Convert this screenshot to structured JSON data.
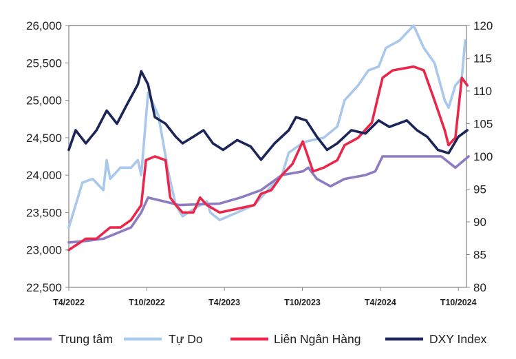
{
  "chart_data": {
    "type": "line",
    "title": "",
    "xlabel": "",
    "ylabel": "",
    "y2label": "",
    "xlim": [
      "2022-04-01",
      "2024-10-20"
    ],
    "ylim": [
      22500,
      26000
    ],
    "y2lim": [
      80,
      120
    ],
    "grid": false,
    "legend_position": "bottom",
    "y_ticks": [
      "22,500",
      "23,000",
      "23,500",
      "24,000",
      "24,500",
      "25,000",
      "25,500",
      "26,000"
    ],
    "y2_ticks": [
      "80",
      "85",
      "90",
      "95",
      "100",
      "105",
      "110",
      "115",
      "120"
    ],
    "x_ticks": [
      {
        "label": "T4/2022",
        "date": "2022-04-01"
      },
      {
        "label": "T10/2022",
        "date": "2022-10-01"
      },
      {
        "label": "T4/2023",
        "date": "2023-04-01"
      },
      {
        "label": "T10/2023",
        "date": "2023-10-01"
      },
      {
        "label": "T4/2024",
        "date": "2024-04-01"
      },
      {
        "label": "T10/2024",
        "date": "2024-10-01"
      }
    ],
    "series": [
      {
        "name": "Tự Do",
        "axis": "left",
        "color": "#a9c8ec",
        "points": [
          [
            "2022-04-01",
            23300
          ],
          [
            "2022-04-17",
            23600
          ],
          [
            "2022-05-03",
            23900
          ],
          [
            "2022-05-27",
            23950
          ],
          [
            "2022-06-21",
            23800
          ],
          [
            "2022-06-29",
            24200
          ],
          [
            "2022-07-07",
            23950
          ],
          [
            "2022-07-31",
            24100
          ],
          [
            "2022-08-25",
            24100
          ],
          [
            "2022-09-10",
            24200
          ],
          [
            "2022-09-18",
            24000
          ],
          [
            "2022-10-04",
            25100
          ],
          [
            "2022-10-12",
            25000
          ],
          [
            "2022-10-28",
            24800
          ],
          [
            "2022-11-22",
            24000
          ],
          [
            "2022-12-08",
            23600
          ],
          [
            "2022-12-24",
            23450
          ],
          [
            "2023-02-03",
            23600
          ],
          [
            "2023-02-19",
            23650
          ],
          [
            "2023-02-27",
            23500
          ],
          [
            "2023-03-21",
            23400
          ],
          [
            "2023-05-01",
            23500
          ],
          [
            "2023-06-10",
            23600
          ],
          [
            "2023-07-12",
            23800
          ],
          [
            "2023-08-14",
            24000
          ],
          [
            "2023-08-30",
            24300
          ],
          [
            "2023-09-24",
            24400
          ],
          [
            "2023-10-10",
            24450
          ],
          [
            "2023-11-20",
            24500
          ],
          [
            "2023-12-22",
            24650
          ],
          [
            "2024-01-08",
            25000
          ],
          [
            "2024-02-09",
            25200
          ],
          [
            "2024-03-04",
            25400
          ],
          [
            "2024-03-28",
            25450
          ],
          [
            "2024-04-14",
            25700
          ],
          [
            "2024-05-16",
            25800
          ],
          [
            "2024-06-18",
            26000
          ],
          [
            "2024-07-12",
            25700
          ],
          [
            "2024-08-06",
            25500
          ],
          [
            "2024-08-30",
            25000
          ],
          [
            "2024-09-08",
            24900
          ],
          [
            "2024-09-24",
            25200
          ],
          [
            "2024-10-09",
            25300
          ],
          [
            "2024-10-17",
            25800
          ]
        ]
      },
      {
        "name": "Trung tâm",
        "axis": "left",
        "color": "#8e7cc3",
        "points": [
          [
            "2022-04-01",
            23100
          ],
          [
            "2022-05-11",
            23120
          ],
          [
            "2022-06-21",
            23150
          ],
          [
            "2022-08-25",
            23300
          ],
          [
            "2022-09-18",
            23500
          ],
          [
            "2022-10-04",
            23700
          ],
          [
            "2022-12-16",
            23600
          ],
          [
            "2023-03-21",
            23620
          ],
          [
            "2023-05-09",
            23700
          ],
          [
            "2023-06-26",
            23800
          ],
          [
            "2023-08-14",
            24000
          ],
          [
            "2023-10-02",
            24050
          ],
          [
            "2023-10-15",
            24100
          ],
          [
            "2023-11-04",
            23950
          ],
          [
            "2023-12-06",
            23850
          ],
          [
            "2024-01-08",
            23950
          ],
          [
            "2024-02-26",
            24000
          ],
          [
            "2024-03-20",
            24050
          ],
          [
            "2024-04-06",
            24250
          ],
          [
            "2024-08-22",
            24250
          ],
          [
            "2024-09-24",
            24100
          ],
          [
            "2024-10-25",
            24250
          ]
        ]
      },
      {
        "name": "Liên Ngân Hàng",
        "axis": "left",
        "color": "#e8274b",
        "points": [
          [
            "2022-04-01",
            23000
          ],
          [
            "2022-05-11",
            23150
          ],
          [
            "2022-06-05",
            23150
          ],
          [
            "2022-07-07",
            23300
          ],
          [
            "2022-07-31",
            23300
          ],
          [
            "2022-08-25",
            23400
          ],
          [
            "2022-09-18",
            23600
          ],
          [
            "2022-09-29",
            24200
          ],
          [
            "2022-10-20",
            24250
          ],
          [
            "2022-11-14",
            24200
          ],
          [
            "2022-11-25",
            23700
          ],
          [
            "2022-12-08",
            23600
          ],
          [
            "2022-12-24",
            23500
          ],
          [
            "2023-01-18",
            23500
          ],
          [
            "2023-02-03",
            23700
          ],
          [
            "2023-02-19",
            23600
          ],
          [
            "2023-03-21",
            23500
          ],
          [
            "2023-05-01",
            23550
          ],
          [
            "2023-06-10",
            23600
          ],
          [
            "2023-06-26",
            23750
          ],
          [
            "2023-07-20",
            23800
          ],
          [
            "2023-08-14",
            24000
          ],
          [
            "2023-09-08",
            24150
          ],
          [
            "2023-10-02",
            24450
          ],
          [
            "2023-10-26",
            24050
          ],
          [
            "2023-11-20",
            24100
          ],
          [
            "2023-12-22",
            24200
          ],
          [
            "2024-01-08",
            24400
          ],
          [
            "2024-02-09",
            24500
          ],
          [
            "2024-03-12",
            24700
          ],
          [
            "2024-04-06",
            25300
          ],
          [
            "2024-04-30",
            25400
          ],
          [
            "2024-06-18",
            25450
          ],
          [
            "2024-07-12",
            25400
          ],
          [
            "2024-08-06",
            25000
          ],
          [
            "2024-08-30",
            24600
          ],
          [
            "2024-09-08",
            24400
          ],
          [
            "2024-09-24",
            24500
          ],
          [
            "2024-10-09",
            25300
          ],
          [
            "2024-10-22",
            25200
          ]
        ]
      },
      {
        "name": "DXY Index",
        "axis": "right",
        "color": "#1b2557",
        "points": [
          [
            "2022-04-01",
            101
          ],
          [
            "2022-04-17",
            104
          ],
          [
            "2022-05-11",
            102
          ],
          [
            "2022-06-05",
            104
          ],
          [
            "2022-06-29",
            107
          ],
          [
            "2022-07-23",
            105
          ],
          [
            "2022-08-16",
            108
          ],
          [
            "2022-09-10",
            111
          ],
          [
            "2022-09-18",
            113
          ],
          [
            "2022-10-04",
            111
          ],
          [
            "2022-10-20",
            106
          ],
          [
            "2022-11-14",
            105
          ],
          [
            "2022-12-08",
            103
          ],
          [
            "2022-12-24",
            102
          ],
          [
            "2023-01-18",
            103
          ],
          [
            "2023-02-11",
            104
          ],
          [
            "2023-03-05",
            102
          ],
          [
            "2023-03-29",
            101
          ],
          [
            "2023-05-01",
            102.5
          ],
          [
            "2023-06-02",
            101.5
          ],
          [
            "2023-06-26",
            99.5
          ],
          [
            "2023-07-28",
            102
          ],
          [
            "2023-08-30",
            104
          ],
          [
            "2023-09-16",
            106
          ],
          [
            "2023-10-10",
            105.5
          ],
          [
            "2023-11-04",
            103
          ],
          [
            "2023-11-28",
            101
          ],
          [
            "2023-12-22",
            102
          ],
          [
            "2024-01-24",
            104
          ],
          [
            "2024-02-26",
            103.5
          ],
          [
            "2024-03-28",
            105.5
          ],
          [
            "2024-04-22",
            104.5
          ],
          [
            "2024-06-02",
            105.5
          ],
          [
            "2024-06-26",
            104
          ],
          [
            "2024-07-20",
            103
          ],
          [
            "2024-08-14",
            101
          ],
          [
            "2024-09-08",
            100.5
          ],
          [
            "2024-10-01",
            103
          ],
          [
            "2024-10-22",
            104
          ]
        ]
      }
    ]
  }
}
